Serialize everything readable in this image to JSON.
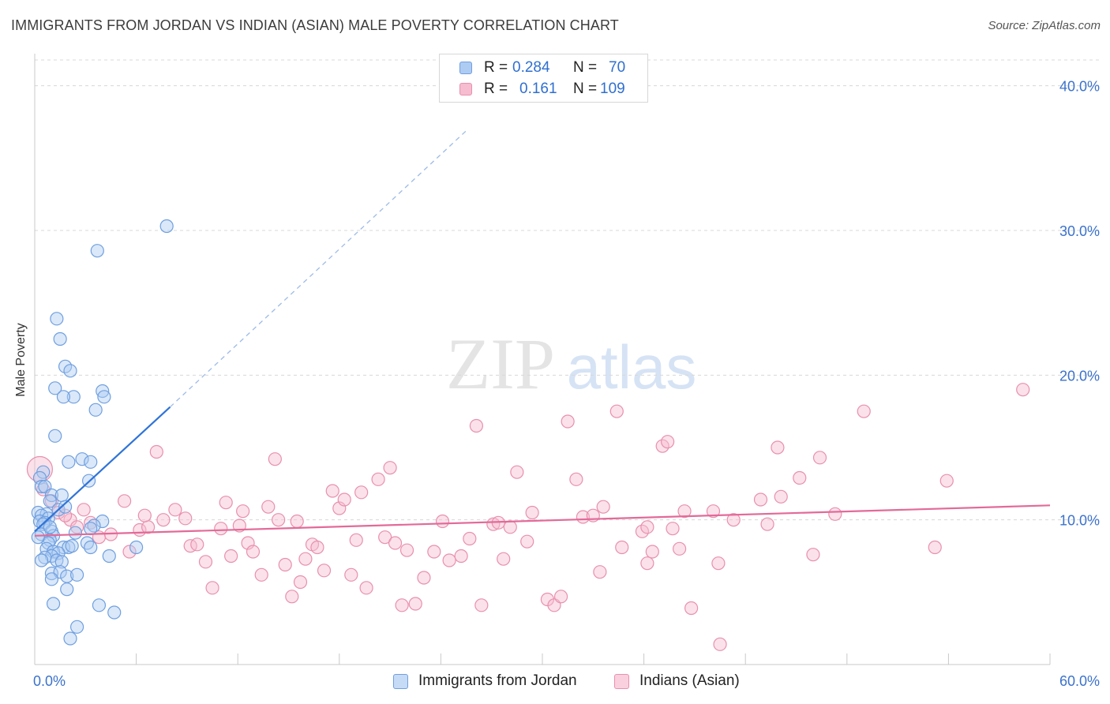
{
  "title": "IMMIGRANTS FROM JORDAN VS INDIAN (ASIAN) MALE POVERTY CORRELATION CHART",
  "source": "Source: ZipAtlas.com",
  "watermark": {
    "zip": "ZIP",
    "atlas": "atlas"
  },
  "legend": {
    "rows": [
      {
        "r_label": "R =",
        "r_value": "0.284",
        "n_label": "N =",
        "n_value": "70"
      },
      {
        "r_label": "R =",
        "r_value": "0.161",
        "n_label": "N =",
        "n_value": "109"
      }
    ]
  },
  "bottom_legend": {
    "series1": "Immigrants from Jordan",
    "series2": "Indians (Asian)"
  },
  "colors": {
    "blue_fill": "#aecbf2",
    "blue_stroke": "#6f9fe0",
    "blue_line": "#2f74d8",
    "pink_fill": "#f6bcd0",
    "pink_stroke": "#e890ad",
    "pink_line": "#e36a97",
    "axis_text": "#3b72cc",
    "grid": "#d8d8d8"
  },
  "chart_data": {
    "type": "scatter",
    "title": "IMMIGRANTS FROM JORDAN VS INDIAN (ASIAN) MALE POVERTY CORRELATION CHART",
    "xlabel": "",
    "ylabel": "Male Poverty",
    "xlim": [
      0,
      60
    ],
    "ylim": [
      0,
      42
    ],
    "x_tick_labels": [
      "0.0%",
      "60.0%"
    ],
    "y_ticks": [
      10,
      20,
      30,
      40
    ],
    "y_tick_labels": [
      "10.0%",
      "20.0%",
      "30.0%",
      "40.0%"
    ],
    "grid": true,
    "series": [
      {
        "name": "Immigrants from Jordan",
        "R": 0.284,
        "N": 70,
        "trend": {
          "x": [
            0,
            8.0
          ],
          "y": [
            9.2,
            17.8
          ],
          "dashed_to": [
            25.6,
            37.0
          ]
        },
        "points": [
          [
            7.8,
            30.3
          ],
          [
            3.7,
            28.6
          ],
          [
            1.3,
            23.9
          ],
          [
            1.5,
            22.5
          ],
          [
            1.8,
            20.6
          ],
          [
            2.1,
            20.3
          ],
          [
            1.2,
            19.1
          ],
          [
            2.3,
            18.5
          ],
          [
            1.7,
            18.5
          ],
          [
            4.0,
            18.9
          ],
          [
            4.1,
            18.5
          ],
          [
            3.6,
            17.6
          ],
          [
            1.2,
            15.8
          ],
          [
            2.0,
            14.0
          ],
          [
            2.8,
            14.2
          ],
          [
            3.3,
            14.0
          ],
          [
            0.5,
            13.3
          ],
          [
            0.3,
            12.9
          ],
          [
            3.2,
            12.7
          ],
          [
            0.4,
            12.3
          ],
          [
            0.6,
            12.3
          ],
          [
            1.0,
            11.7
          ],
          [
            1.6,
            11.7
          ],
          [
            0.9,
            11.3
          ],
          [
            1.4,
            10.7
          ],
          [
            0.2,
            10.5
          ],
          [
            0.7,
            10.4
          ],
          [
            0.4,
            10.3
          ],
          [
            0.8,
            10.1
          ],
          [
            0.3,
            9.9
          ],
          [
            0.6,
            9.8
          ],
          [
            0.5,
            9.7
          ],
          [
            4.0,
            9.9
          ],
          [
            3.5,
            9.6
          ],
          [
            3.3,
            9.4
          ],
          [
            1.0,
            9.2
          ],
          [
            0.4,
            9.0
          ],
          [
            1.1,
            8.9
          ],
          [
            0.9,
            8.6
          ],
          [
            0.8,
            8.4
          ],
          [
            1.7,
            8.1
          ],
          [
            2.0,
            8.1
          ],
          [
            2.2,
            8.2
          ],
          [
            3.1,
            8.4
          ],
          [
            3.3,
            8.1
          ],
          [
            6.0,
            8.1
          ],
          [
            0.7,
            8.0
          ],
          [
            1.1,
            7.8
          ],
          [
            1.4,
            7.7
          ],
          [
            1.0,
            7.5
          ],
          [
            1.3,
            7.2
          ],
          [
            0.6,
            7.4
          ],
          [
            0.4,
            7.2
          ],
          [
            1.6,
            7.1
          ],
          [
            4.4,
            7.5
          ],
          [
            1.0,
            6.3
          ],
          [
            1.5,
            6.4
          ],
          [
            1.9,
            6.1
          ],
          [
            2.5,
            6.2
          ],
          [
            1.0,
            5.9
          ],
          [
            1.9,
            5.2
          ],
          [
            1.1,
            4.2
          ],
          [
            3.8,
            4.1
          ],
          [
            4.7,
            3.6
          ],
          [
            2.5,
            2.6
          ],
          [
            2.1,
            1.8
          ],
          [
            0.2,
            8.8
          ],
          [
            0.9,
            9.5
          ],
          [
            1.8,
            10.9
          ],
          [
            2.4,
            9.1
          ]
        ]
      },
      {
        "name": "Indians (Asian)",
        "R": 0.161,
        "N": 109,
        "trend": {
          "x": [
            0,
            60
          ],
          "y": [
            8.9,
            11.0
          ]
        },
        "points": [
          [
            0.3,
            13.5
          ],
          [
            0.5,
            12.1
          ],
          [
            1.0,
            11.3
          ],
          [
            1.4,
            10.5
          ],
          [
            2.1,
            10.0
          ],
          [
            2.9,
            10.7
          ],
          [
            3.3,
            9.8
          ],
          [
            3.8,
            8.8
          ],
          [
            4.5,
            9.0
          ],
          [
            5.3,
            11.3
          ],
          [
            5.6,
            7.8
          ],
          [
            6.2,
            9.3
          ],
          [
            6.7,
            9.5
          ],
          [
            7.2,
            14.7
          ],
          [
            7.6,
            10.0
          ],
          [
            8.3,
            10.7
          ],
          [
            8.9,
            10.1
          ],
          [
            9.2,
            8.2
          ],
          [
            9.6,
            8.3
          ],
          [
            10.1,
            7.1
          ],
          [
            10.5,
            5.3
          ],
          [
            11.0,
            9.4
          ],
          [
            11.3,
            11.2
          ],
          [
            11.6,
            7.5
          ],
          [
            12.1,
            9.6
          ],
          [
            12.6,
            8.4
          ],
          [
            12.9,
            7.8
          ],
          [
            13.4,
            6.2
          ],
          [
            13.8,
            10.9
          ],
          [
            14.2,
            14.2
          ],
          [
            14.4,
            10.0
          ],
          [
            14.8,
            6.9
          ],
          [
            15.2,
            4.7
          ],
          [
            15.7,
            5.7
          ],
          [
            16.0,
            7.3
          ],
          [
            16.4,
            8.3
          ],
          [
            16.7,
            8.1
          ],
          [
            17.1,
            6.5
          ],
          [
            17.6,
            12.0
          ],
          [
            18.0,
            10.8
          ],
          [
            18.3,
            11.4
          ],
          [
            18.7,
            6.2
          ],
          [
            19.0,
            8.6
          ],
          [
            19.3,
            11.9
          ],
          [
            19.6,
            5.3
          ],
          [
            20.3,
            12.8
          ],
          [
            20.7,
            8.8
          ],
          [
            21.0,
            13.6
          ],
          [
            21.3,
            8.4
          ],
          [
            21.7,
            4.1
          ],
          [
            22.0,
            7.9
          ],
          [
            22.5,
            4.2
          ],
          [
            23.0,
            6.0
          ],
          [
            23.6,
            7.8
          ],
          [
            24.1,
            9.9
          ],
          [
            24.5,
            7.2
          ],
          [
            25.2,
            7.5
          ],
          [
            25.7,
            8.7
          ],
          [
            26.1,
            16.5
          ],
          [
            26.4,
            4.1
          ],
          [
            27.1,
            9.7
          ],
          [
            27.7,
            7.3
          ],
          [
            28.1,
            9.5
          ],
          [
            28.5,
            13.3
          ],
          [
            29.1,
            8.5
          ],
          [
            29.4,
            10.5
          ],
          [
            30.3,
            4.5
          ],
          [
            30.7,
            4.1
          ],
          [
            31.1,
            4.7
          ],
          [
            31.5,
            16.8
          ],
          [
            32.0,
            12.8
          ],
          [
            32.4,
            10.2
          ],
          [
            33.0,
            10.3
          ],
          [
            33.4,
            6.4
          ],
          [
            33.6,
            10.9
          ],
          [
            34.4,
            17.5
          ],
          [
            34.7,
            8.1
          ],
          [
            35.9,
            9.2
          ],
          [
            36.2,
            7.0
          ],
          [
            36.5,
            7.8
          ],
          [
            37.1,
            15.1
          ],
          [
            37.4,
            15.4
          ],
          [
            37.7,
            9.4
          ],
          [
            38.1,
            8.0
          ],
          [
            38.4,
            10.6
          ],
          [
            38.8,
            3.9
          ],
          [
            40.1,
            10.6
          ],
          [
            40.4,
            7.0
          ],
          [
            40.5,
            1.4
          ],
          [
            41.3,
            10.0
          ],
          [
            42.9,
            11.4
          ],
          [
            43.3,
            9.7
          ],
          [
            43.9,
            15.0
          ],
          [
            44.1,
            11.6
          ],
          [
            45.2,
            12.9
          ],
          [
            46.0,
            7.6
          ],
          [
            46.4,
            14.3
          ],
          [
            47.3,
            10.4
          ],
          [
            49.0,
            17.5
          ],
          [
            53.2,
            8.1
          ],
          [
            53.9,
            12.7
          ],
          [
            58.4,
            19.0
          ],
          [
            2.5,
            9.5
          ],
          [
            6.5,
            10.3
          ],
          [
            12.3,
            10.6
          ],
          [
            15.5,
            9.9
          ],
          [
            27.4,
            9.8
          ],
          [
            36.2,
            9.5
          ],
          [
            1.8,
            10.3
          ]
        ]
      }
    ]
  }
}
